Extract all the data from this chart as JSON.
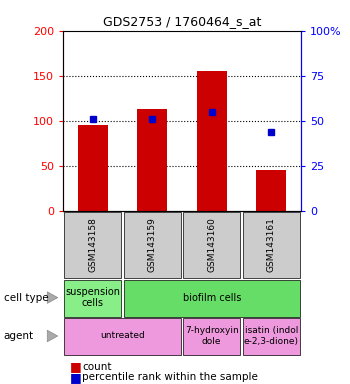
{
  "title": "GDS2753 / 1760464_s_at",
  "samples": [
    "GSM143158",
    "GSM143159",
    "GSM143160",
    "GSM143161"
  ],
  "counts": [
    95,
    113,
    155,
    46
  ],
  "percentile_ranks": [
    51,
    51,
    55,
    44
  ],
  "ylim_left": [
    0,
    200
  ],
  "ylim_right": [
    0,
    100
  ],
  "yticks_left": [
    0,
    50,
    100,
    150,
    200
  ],
  "yticks_right": [
    0,
    25,
    50,
    75,
    100
  ],
  "ytick_labels_right": [
    "0",
    "25",
    "50",
    "75",
    "100%"
  ],
  "bar_color": "#cc0000",
  "marker_color": "#0000cc",
  "cell_type_row": [
    {
      "label": "suspension\ncells",
      "color": "#88ee88",
      "span": 1
    },
    {
      "label": "biofilm cells",
      "color": "#66dd66",
      "span": 3
    }
  ],
  "agent_row": [
    {
      "label": "untreated",
      "color": "#ee99dd",
      "span": 2
    },
    {
      "label": "7-hydroxyin\ndole",
      "color": "#ee99dd",
      "span": 1
    },
    {
      "label": "isatin (indol\ne-2,3-dione)",
      "color": "#ee99dd",
      "span": 1
    }
  ],
  "cell_type_label": "cell type",
  "agent_label": "agent",
  "legend_count_label": "count",
  "legend_pct_label": "percentile rank within the sample",
  "bar_width": 0.5,
  "chart_bg": "#ffffff",
  "sample_box_color": "#cccccc"
}
